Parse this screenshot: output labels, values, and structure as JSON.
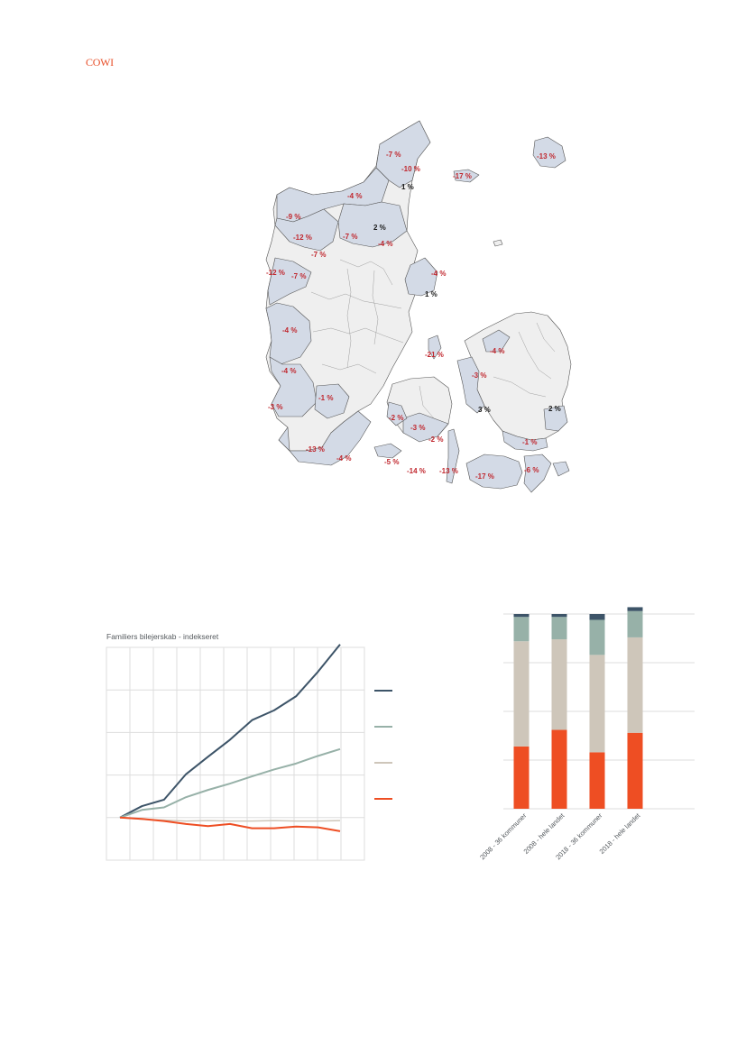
{
  "header": {
    "logo_text": "COWI"
  },
  "map": {
    "label_colors": {
      "negative": "#c0262d",
      "positive": "#1a1a1a"
    },
    "region_colors": {
      "highlighted": "#d3dae6",
      "other": "#efefef",
      "border": "#555555"
    },
    "labels": [
      "-7 %",
      "-10 %",
      "-17 %",
      "-13 %",
      "1 %",
      "-4 %",
      "-9 %",
      "2 %",
      "-12 %",
      "-7 %",
      "-4 %",
      "-7 %",
      "-12 %",
      "-7 %",
      "-4 %",
      "1 %",
      "-4 %",
      "-4 %",
      "-21 %",
      "-4 %",
      "-3 %",
      "-1 %",
      "-3 %",
      "3 %",
      "2 %",
      "-2 %",
      "-3 %",
      "-2 %",
      "-1 %",
      "-13 %",
      "-4 %",
      "-5 %",
      "-14 %",
      "-13 %",
      "-17 %",
      "-6 %"
    ]
  },
  "line_chart": {
    "title": "Familiers bilejerskab - indekseret",
    "colors": {
      "dark": "#3d5468",
      "sage": "#97b1a8",
      "beige": "#cec6ba",
      "orange": "#ee4e23",
      "grid": "#dddddd"
    },
    "chart_data": {
      "type": "line",
      "title": "Familiers bilejerskab - indekseret",
      "xlabel": "",
      "ylabel": "",
      "grid": true,
      "legend": "right, colour swatches only (no text)",
      "x": [
        0,
        1,
        2,
        3,
        4,
        5,
        6,
        7,
        8,
        9,
        10
      ],
      "ylim": [
        -1,
        4
      ],
      "series": [
        {
          "color": "#3d5468",
          "values": [
            0,
            0.27,
            0.42,
            1.02,
            1.43,
            1.83,
            2.29,
            2.52,
            2.85,
            3.43,
            4.07
          ]
        },
        {
          "color": "#97b1a8",
          "values": [
            0,
            0.18,
            0.24,
            0.48,
            0.65,
            0.8,
            0.97,
            1.13,
            1.27,
            1.45,
            1.61
          ]
        },
        {
          "color": "#cec6ba",
          "values": [
            0,
            -0.04,
            -0.06,
            -0.08,
            -0.07,
            -0.08,
            -0.08,
            -0.07,
            -0.08,
            -0.08,
            -0.07
          ]
        },
        {
          "color": "#ee4e23",
          "values": [
            0,
            -0.03,
            -0.08,
            -0.15,
            -0.2,
            -0.15,
            -0.25,
            -0.25,
            -0.21,
            -0.23,
            -0.32
          ]
        }
      ]
    }
  },
  "bar_chart": {
    "colors": {
      "orange": "#ee4e23",
      "beige": "#cec6ba",
      "sage": "#97b1a8",
      "dark": "#3d5468",
      "grid": "#dddddd",
      "tick": "#555a5e"
    },
    "chart_data": {
      "type": "bar",
      "stacked": true,
      "grid": true,
      "categories": [
        "2008 - 36 kommuner",
        "2008 - hele landet",
        "2018 - 36 kommuner",
        "2018 - hele landet"
      ],
      "ylim": [
        0,
        100
      ],
      "series": [
        {
          "color": "#ee4e23",
          "values": [
            32,
            40.5,
            29,
            39
          ]
        },
        {
          "color": "#cec6ba",
          "values": [
            54,
            46.5,
            50,
            49
          ]
        },
        {
          "color": "#97b1a8",
          "values": [
            12.5,
            11.5,
            18,
            13.5
          ]
        },
        {
          "color": "#3d5468",
          "values": [
            1.5,
            1.5,
            3,
            2
          ]
        }
      ]
    }
  }
}
